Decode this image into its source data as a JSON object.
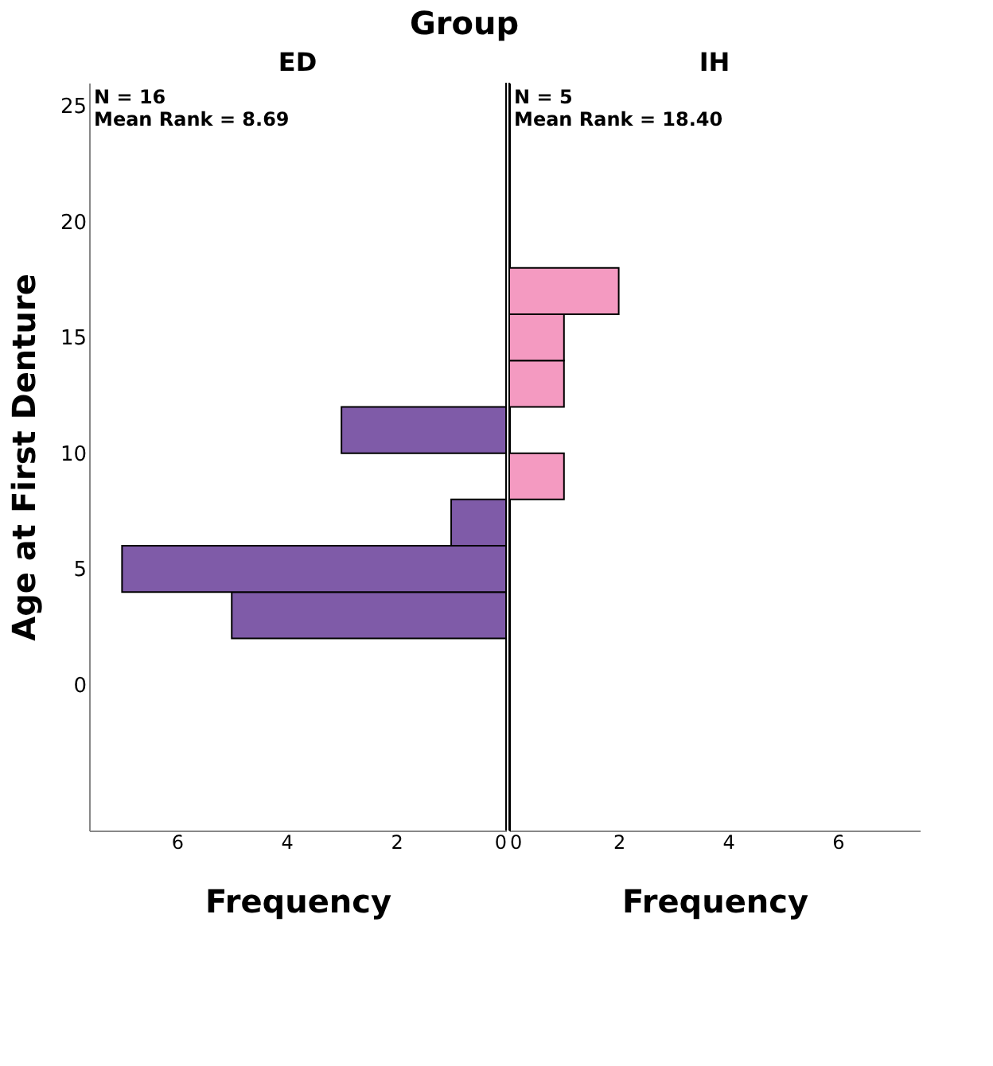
{
  "chart_data": [
    {
      "type": "histogram",
      "orientation": "horizontal",
      "title": "ED",
      "ylabel": "Age at First Denture",
      "xlabel": "Frequency",
      "annotations": [
        "Group",
        "N = 16",
        "Mean Rank = 8.69"
      ],
      "bins": [
        2,
        4,
        6,
        8,
        10,
        12,
        14,
        16,
        18
      ],
      "values": [
        5,
        7,
        1,
        0,
        3,
        0,
        0,
        0
      ],
      "color": "#7f5ba8",
      "xlim": [
        7.6,
        0
      ],
      "xticks": [
        6,
        4,
        2,
        0
      ],
      "ylim": [
        -6.3,
        26
      ],
      "yticks": [
        0,
        5,
        10,
        15,
        20,
        25
      ],
      "grid": false
    },
    {
      "type": "histogram",
      "orientation": "horizontal",
      "title": "IH",
      "xlabel": "Frequency",
      "annotations": [
        "N = 5",
        "Mean Rank = 18.40"
      ],
      "bins": [
        2,
        4,
        6,
        8,
        10,
        12,
        14,
        16,
        18
      ],
      "values": [
        0,
        0,
        0,
        1,
        0,
        1,
        1,
        2
      ],
      "color": "#f49ac1",
      "xlim": [
        0,
        7.5
      ],
      "xticks": [
        0,
        2,
        4,
        6
      ],
      "ylim": [
        -6.3,
        26
      ],
      "yticks": [
        0,
        5,
        10,
        15,
        20,
        25
      ],
      "tick_labels": "x",
      "grid": false
    }
  ]
}
